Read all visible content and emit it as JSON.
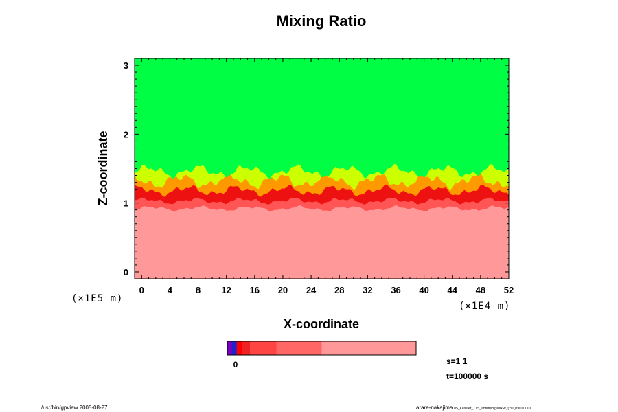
{
  "chart_data": {
    "type": "heatmap",
    "title": "Mixing Ratio",
    "xlabel": "X-coordinate",
    "ylabel": "Z-coordinate",
    "x_multiplier": "(×1E4 m)",
    "z_multiplier": "(×1E5 m)",
    "xlim": [
      -1,
      52
    ],
    "ylim": [
      -0.1,
      3.1
    ],
    "x_ticks": [
      "0",
      "4",
      "8",
      "12",
      "16",
      "20",
      "24",
      "28",
      "32",
      "36",
      "40",
      "44",
      "48",
      "52"
    ],
    "y_ticks": [
      "0",
      "1",
      "2",
      "3"
    ],
    "x_tick_values": [
      0,
      4,
      8,
      12,
      16,
      20,
      24,
      28,
      32,
      36,
      40,
      44,
      48,
      52
    ],
    "y_tick_values": [
      0,
      1,
      2,
      3
    ],
    "layers": [
      {
        "name": "upper",
        "color": "#00ff44"
      },
      {
        "name": "mixing-yellow",
        "color": "#ccff00"
      },
      {
        "name": "mixing-orange",
        "color": "#ff9900"
      },
      {
        "name": "interface-red",
        "color": "#ee1111"
      },
      {
        "name": "transition",
        "color": "#ff5555"
      },
      {
        "name": "lower",
        "color": "#ff9999"
      }
    ],
    "colorbar": {
      "tick_label": "0",
      "segments": [
        {
          "color": "#7700bb",
          "weight": 0.025
        },
        {
          "color": "#2222cc",
          "weight": 0.025
        },
        {
          "color": "#ff0000",
          "weight": 0.03
        },
        {
          "color": "#ee2222",
          "weight": 0.04
        },
        {
          "color": "#ff4444",
          "weight": 0.14
        },
        {
          "color": "#ff6666",
          "weight": 0.24
        },
        {
          "color": "#ff9999",
          "weight": 0.5
        }
      ]
    },
    "annotations": {
      "s": "s=1 1",
      "t": "t=100000 s"
    }
  },
  "footer": {
    "left": "/usr/bin/gpview 2005-08-27",
    "right_main": "arare-nakajima",
    "right_small": "05_Kessler_1TS_antimed@MixRt,t(z01),t=010000"
  }
}
